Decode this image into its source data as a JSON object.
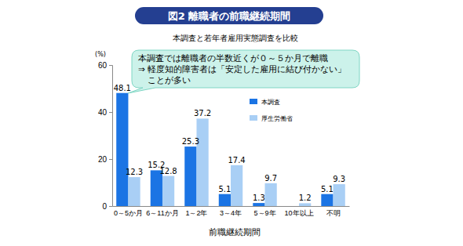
{
  "chart_data": {
    "type": "bar",
    "title": "図2  離職者の前職継続期間",
    "subtitle": "本調査と若年者雇用実態調査を比較",
    "ylabel": "(%)",
    "xlabel": "前職継続期間",
    "annotations": [
      "本調査では離職者の半数近くが０～５か月で離職",
      "⇒ 軽度知的障害者は「安定した雇用に結び付かない」",
      "ことが多い"
    ],
    "categories": [
      "0～5か月",
      "6～11か月",
      "1～2年",
      "3～4年",
      "5～9年",
      "10年以上",
      "不明"
    ],
    "series": [
      {
        "name": "本調査",
        "color": "#1b74e4",
        "values": [
          48.1,
          15.2,
          25.3,
          5.1,
          1.3,
          null,
          5.1
        ]
      },
      {
        "name": "厚生労働省",
        "color": "#a9cff5",
        "values": [
          12.3,
          12.8,
          37.2,
          17.4,
          9.7,
          1.2,
          9.3
        ]
      }
    ],
    "ylim": [
      0,
      60
    ],
    "yticks": [
      0,
      20,
      40,
      60
    ],
    "grid": false,
    "legend": "right",
    "data_labels": true
  }
}
